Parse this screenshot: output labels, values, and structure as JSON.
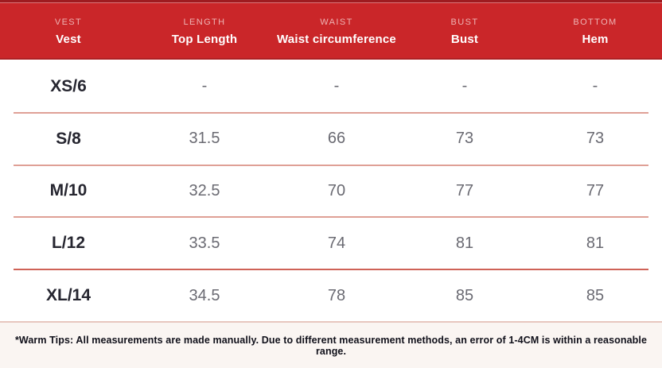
{
  "header": {
    "columns": [
      {
        "en": "VEST",
        "label": "Vest"
      },
      {
        "en": "LENGTH",
        "label": "Top Length"
      },
      {
        "en": "WAIST",
        "label": "Waist circumference"
      },
      {
        "en": "BUST",
        "label": "Bust"
      },
      {
        "en": "BOTTOM",
        "label": "Hem"
      }
    ]
  },
  "table": {
    "rows": [
      {
        "size": "XS/6",
        "values": [
          "-",
          "-",
          "-",
          "-"
        ]
      },
      {
        "size": "S/8",
        "values": [
          "31.5",
          "66",
          "73",
          "73"
        ]
      },
      {
        "size": "M/10",
        "values": [
          "32.5",
          "70",
          "77",
          "77"
        ]
      },
      {
        "size": "L/12",
        "values": [
          "33.5",
          "74",
          "81",
          "81"
        ]
      },
      {
        "size": "XL/14",
        "values": [
          "34.5",
          "78",
          "85",
          "85"
        ]
      }
    ]
  },
  "footer": {
    "note": "*Warm Tips: All measurements are made manually. Due to different measurement methods, an error of 1-4CM is within a reasonable range."
  },
  "colors": {
    "header_red": "#ca2629",
    "header_border_dark_red": "#9e1b20",
    "header_sublabel_pink": "#eeb4b4",
    "row_divider_salmon": "#dfa096",
    "row_divider_strong": "#cf6257",
    "size_text": "#262630",
    "value_text": "#6a6a72",
    "note_background": "#faf5f2",
    "note_text": "#10101a"
  }
}
